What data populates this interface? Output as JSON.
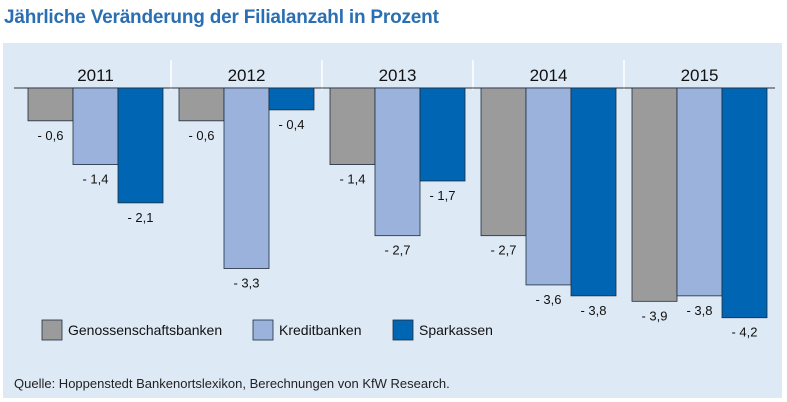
{
  "header": {
    "title": "Jährliche Veränderung der Filialanzahl in Prozent"
  },
  "footer": {
    "source": "Quelle: Hoppenstedt Bankenortslexikon, Berechnungen von KfW Research."
  },
  "chart_data": {
    "type": "bar",
    "title": "Jährliche Veränderung der Filialanzahl in Prozent",
    "xlabel": "",
    "ylabel": "",
    "categories": [
      "2011",
      "2012",
      "2013",
      "2014",
      "2015"
    ],
    "series": [
      {
        "name": "Genossenschaftsbanken",
        "color": "#9b9b9b",
        "values": [
          -0.6,
          -0.6,
          -1.4,
          -2.7,
          -3.9
        ],
        "labels": [
          "- 0,6",
          "- 0,6",
          "- 1,4",
          "- 2,7",
          "- 3,9"
        ]
      },
      {
        "name": "Kreditbanken",
        "color": "#9bb3dc",
        "values": [
          -1.4,
          -3.3,
          -2.7,
          -3.6,
          -3.8
        ],
        "labels": [
          "- 1,4",
          "- 3,3",
          "- 2,7",
          "- 3,6",
          "- 3,8"
        ]
      },
      {
        "name": "Sparkassen",
        "color": "#0066b3",
        "values": [
          -2.1,
          -0.4,
          -1.7,
          -3.8,
          -4.2
        ],
        "labels": [
          "- 2,1",
          "- 0,4",
          "- 1,7",
          "- 3,8",
          "- 4,2"
        ]
      }
    ],
    "ylim": [
      -4.2,
      0
    ],
    "grid": false,
    "legend_position": "bottom-left",
    "category_labels_position": "top"
  }
}
